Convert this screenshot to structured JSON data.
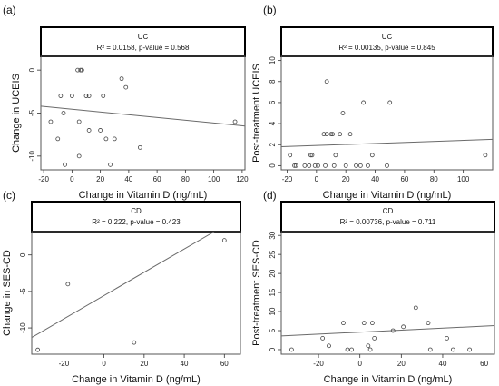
{
  "chart_data": [
    {
      "type": "scatter",
      "panel_label": "(a)",
      "strip_title": "UC",
      "stats": "R² = 0.0158, p-value = 0.568",
      "xlabel": "Change in Vitamin D (ng/mL)",
      "ylabel": "Change in UCEIS",
      "xlim": [
        -22,
        122
      ],
      "ylim": [
        -11.6,
        1.6
      ],
      "xticks": [
        -20,
        0,
        20,
        40,
        60,
        80,
        100,
        120
      ],
      "yticks": [
        0,
        -5,
        -10
      ],
      "points": [
        {
          "x": -15,
          "y": -6
        },
        {
          "x": -10,
          "y": -8
        },
        {
          "x": -8,
          "y": -3
        },
        {
          "x": -6,
          "y": -5
        },
        {
          "x": -5,
          "y": -11
        },
        {
          "x": 0,
          "y": -3
        },
        {
          "x": 4,
          "y": 0
        },
        {
          "x": 5,
          "y": -10
        },
        {
          "x": 5,
          "y": -6
        },
        {
          "x": 6,
          "y": 0
        },
        {
          "x": 7,
          "y": 0
        },
        {
          "x": 10,
          "y": -3
        },
        {
          "x": 12,
          "y": -3
        },
        {
          "x": 12,
          "y": -7
        },
        {
          "x": 20,
          "y": -7
        },
        {
          "x": 22,
          "y": -3
        },
        {
          "x": 24,
          "y": -8
        },
        {
          "x": 27,
          "y": -11
        },
        {
          "x": 30,
          "y": -8
        },
        {
          "x": 35,
          "y": -1
        },
        {
          "x": 38,
          "y": -2
        },
        {
          "x": 48,
          "y": -9
        },
        {
          "x": 115,
          "y": -6
        }
      ],
      "fit": {
        "x1": -22,
        "y1": -4.2,
        "x2": 122,
        "y2": -6.5
      }
    },
    {
      "type": "scatter",
      "panel_label": "(b)",
      "strip_title": "UC",
      "stats": "R² = 0.00135, p-value = 0.845",
      "xlabel": "Change in Vitamin D (ng/mL)",
      "ylabel": "Post-treatment UCEIS",
      "xlim": [
        -24,
        120
      ],
      "ylim": [
        -0.4,
        10.4
      ],
      "xticks": [
        -20,
        0,
        20,
        40,
        60,
        80,
        100
      ],
      "yticks": [
        0,
        2,
        4,
        6,
        8,
        10
      ],
      "points": [
        {
          "x": -18,
          "y": 1
        },
        {
          "x": -15,
          "y": 0
        },
        {
          "x": -14,
          "y": 0
        },
        {
          "x": -8,
          "y": 0
        },
        {
          "x": -5,
          "y": 0
        },
        {
          "x": -4,
          "y": 1
        },
        {
          "x": -3,
          "y": 1
        },
        {
          "x": -1,
          "y": 0
        },
        {
          "x": 1,
          "y": 0
        },
        {
          "x": 5,
          "y": 3
        },
        {
          "x": 6,
          "y": 0
        },
        {
          "x": 7,
          "y": 3
        },
        {
          "x": 7,
          "y": 8
        },
        {
          "x": 10,
          "y": 3
        },
        {
          "x": 11,
          "y": 3
        },
        {
          "x": 12,
          "y": 0
        },
        {
          "x": 13,
          "y": 1
        },
        {
          "x": 16,
          "y": 3
        },
        {
          "x": 18,
          "y": 5
        },
        {
          "x": 20,
          "y": 0
        },
        {
          "x": 23,
          "y": 3
        },
        {
          "x": 27,
          "y": 0
        },
        {
          "x": 30,
          "y": 0
        },
        {
          "x": 32,
          "y": 6
        },
        {
          "x": 35,
          "y": 0
        },
        {
          "x": 38,
          "y": 1
        },
        {
          "x": 48,
          "y": 0
        },
        {
          "x": 50,
          "y": 6
        },
        {
          "x": 115,
          "y": 1
        }
      ],
      "fit": {
        "x1": -24,
        "y1": 1.8,
        "x2": 120,
        "y2": 2.5
      }
    },
    {
      "type": "scatter",
      "panel_label": "(c)",
      "strip_title": "CD",
      "stats": "R² = 0.222, p-value = 0.423",
      "xlabel": "Change in Vitamin D (ng/mL)",
      "ylabel": "Change in SES-CD",
      "xlim": [
        -36,
        68
      ],
      "ylim": [
        -13.6,
        3.2
      ],
      "xticks": [
        -20,
        0,
        20,
        40,
        60
      ],
      "yticks": [
        0,
        -5,
        -10
      ],
      "points": [
        {
          "x": -33,
          "y": -13
        },
        {
          "x": -18,
          "y": -4
        },
        {
          "x": 15,
          "y": -12
        },
        {
          "x": 60,
          "y": 2
        }
      ],
      "fit": {
        "x1": -36,
        "y1": -11.3,
        "x2": 55,
        "y2": 3.2
      }
    },
    {
      "type": "scatter",
      "panel_label": "(d)",
      "strip_title": "CD",
      "stats": "R² = 0.00736, p-value = 0.711",
      "xlabel": "Change in Vitamin D (ng/mL)",
      "ylabel": "Post-treatment SES-CD",
      "xlim": [
        -38,
        65
      ],
      "ylim": [
        -1.2,
        31
      ],
      "xticks": [
        -20,
        0,
        20,
        40,
        60
      ],
      "yticks": [
        0,
        5,
        10,
        15,
        20,
        25,
        30
      ],
      "points": [
        {
          "x": -33,
          "y": 0
        },
        {
          "x": -18,
          "y": 3
        },
        {
          "x": -15,
          "y": 1
        },
        {
          "x": -8,
          "y": 7
        },
        {
          "x": -6,
          "y": 0
        },
        {
          "x": -4,
          "y": 0
        },
        {
          "x": 2,
          "y": 7
        },
        {
          "x": 4,
          "y": 1
        },
        {
          "x": 5,
          "y": 0
        },
        {
          "x": 6,
          "y": 7
        },
        {
          "x": 7,
          "y": 3
        },
        {
          "x": 16,
          "y": 5
        },
        {
          "x": 21,
          "y": 6
        },
        {
          "x": 27,
          "y": 11
        },
        {
          "x": 33,
          "y": 7
        },
        {
          "x": 34,
          "y": 0
        },
        {
          "x": 42,
          "y": 3
        },
        {
          "x": 45,
          "y": 0
        },
        {
          "x": 53,
          "y": 0
        }
      ],
      "fit": {
        "x1": -38,
        "y1": 3.6,
        "x2": 65,
        "y2": 6.3
      }
    }
  ]
}
